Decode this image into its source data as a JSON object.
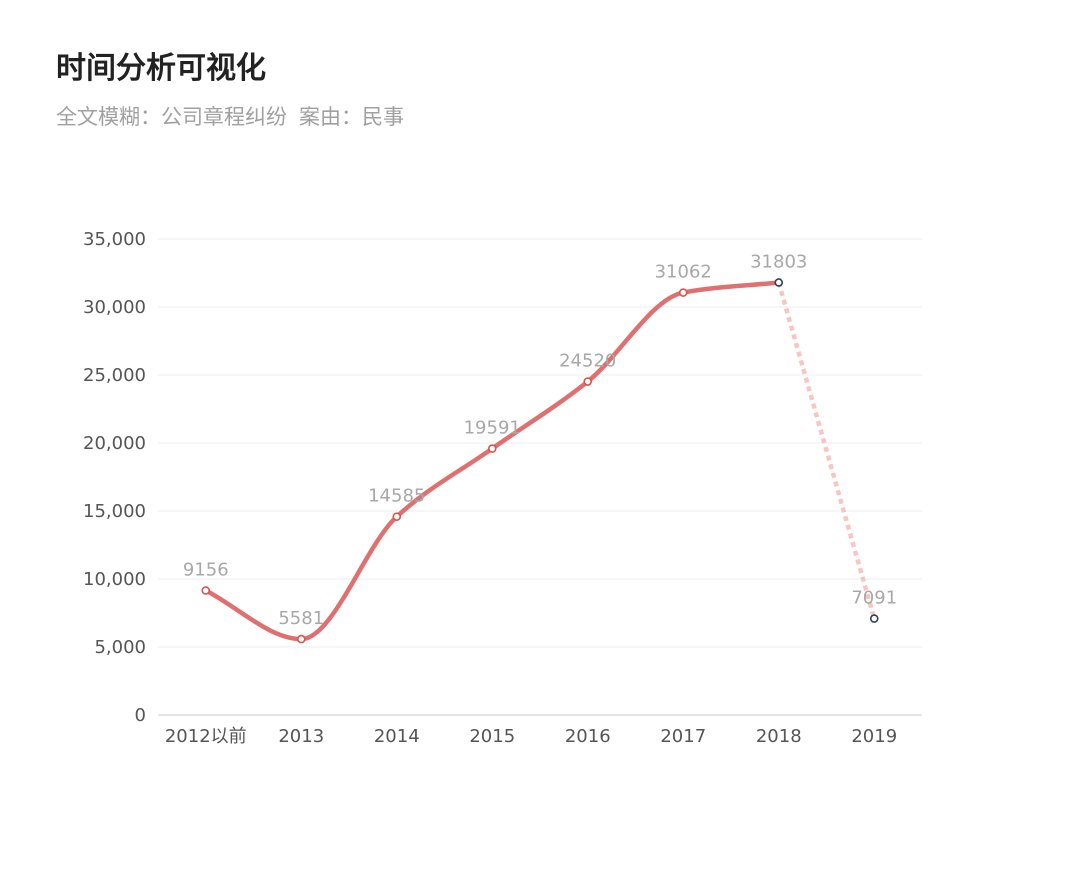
{
  "header": {
    "title": "时间分析可视化",
    "subtitle_search": "全文模糊：公司章程纠纷",
    "subtitle_case": "案由：民事"
  },
  "colors": {
    "line": "#e07070",
    "line_dashed": "#f6c7c2",
    "marker_solid": "#d9534f",
    "marker_dashed": "#2f3e5e",
    "grid": "#eeeeee",
    "axis": "#dddddd"
  },
  "chart_data": {
    "type": "line",
    "title": "",
    "xlabel": "",
    "ylabel": "",
    "categories": [
      "2012以前",
      "2013",
      "2014",
      "2015",
      "2016",
      "2017",
      "2018",
      "2019"
    ],
    "series": [
      {
        "values": [
          9156,
          5581,
          14585,
          19591,
          24520,
          31062,
          31803,
          7091
        ],
        "solid_until_index": 6,
        "dashed_from_index": 6
      }
    ],
    "data_labels": [
      "9156",
      "5581",
      "14585",
      "19591",
      "24520",
      "31062",
      "31803",
      "7091"
    ],
    "ylim": [
      0,
      35000
    ],
    "yticks": [
      0,
      5000,
      10000,
      15000,
      20000,
      25000,
      30000,
      35000
    ],
    "ytick_labels": [
      "0",
      "5,000",
      "10,000",
      "15,000",
      "20,000",
      "25,000",
      "30,000",
      "35,000"
    ],
    "grid": true,
    "legend": "none"
  }
}
